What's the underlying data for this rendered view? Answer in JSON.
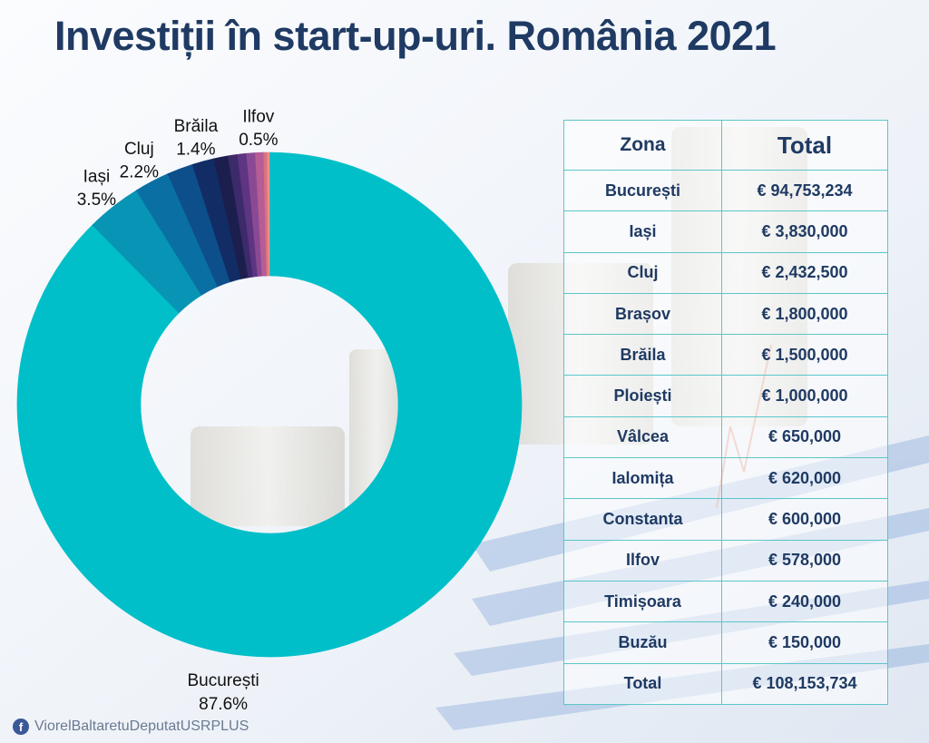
{
  "title": "Investiții în start-up-uri.  România 2021",
  "table": {
    "headers": [
      "Zona",
      "Total"
    ],
    "rows": [
      [
        "București",
        "€ 94,753,234"
      ],
      [
        "Iași",
        "€ 3,830,000"
      ],
      [
        "Cluj",
        "€ 2,432,500"
      ],
      [
        "Brașov",
        "€ 1,800,000"
      ],
      [
        "Brăila",
        "€ 1,500,000"
      ],
      [
        "Ploiești",
        "€ 1,000,000"
      ],
      [
        "Vâlcea",
        "€ 650,000"
      ],
      [
        "Ialomița",
        "€ 620,000"
      ],
      [
        "Constanta",
        "€ 600,000"
      ],
      [
        "Ilfov",
        "€ 578,000"
      ],
      [
        "Timișoara",
        "€ 240,000"
      ],
      [
        "Buzău",
        "€ 150,000"
      ],
      [
        "Total",
        "€ 108,153,734"
      ]
    ]
  },
  "chart_data": {
    "type": "pie",
    "donut": true,
    "categories": [
      "București",
      "Iași",
      "Cluj",
      "Brașov",
      "Brăila",
      "Ploiești",
      "Vâlcea",
      "Ialomița",
      "Constanta",
      "Ilfov",
      "Timișoara",
      "Buzău"
    ],
    "values": [
      94753234,
      3830000,
      2432500,
      1800000,
      1500000,
      1000000,
      650000,
      620000,
      600000,
      578000,
      240000,
      150000
    ],
    "colors": [
      "#00bfc9",
      "#0895b5",
      "#0a6fa3",
      "#0d4f8a",
      "#122d66",
      "#1c1f4d",
      "#3d2a6b",
      "#5e3582",
      "#8a4a93",
      "#b65d95",
      "#d8737f",
      "#ee8e8a"
    ],
    "slice_labels": [
      {
        "category": "București",
        "name": "București",
        "percent": "87.6%"
      },
      {
        "category": "Iași",
        "name": "Iași",
        "percent": "3.5%"
      },
      {
        "category": "Cluj",
        "name": "Cluj",
        "percent": "2.2%"
      },
      {
        "category": "Brăila",
        "name": "Brăila",
        "percent": "1.4%"
      },
      {
        "category": "Ilfov",
        "name": "Ilfov",
        "percent": "0.5%"
      }
    ]
  },
  "footer": {
    "icon": "facebook-icon",
    "text": "ViorelBaltaretuDeputatUSRPLUS"
  }
}
